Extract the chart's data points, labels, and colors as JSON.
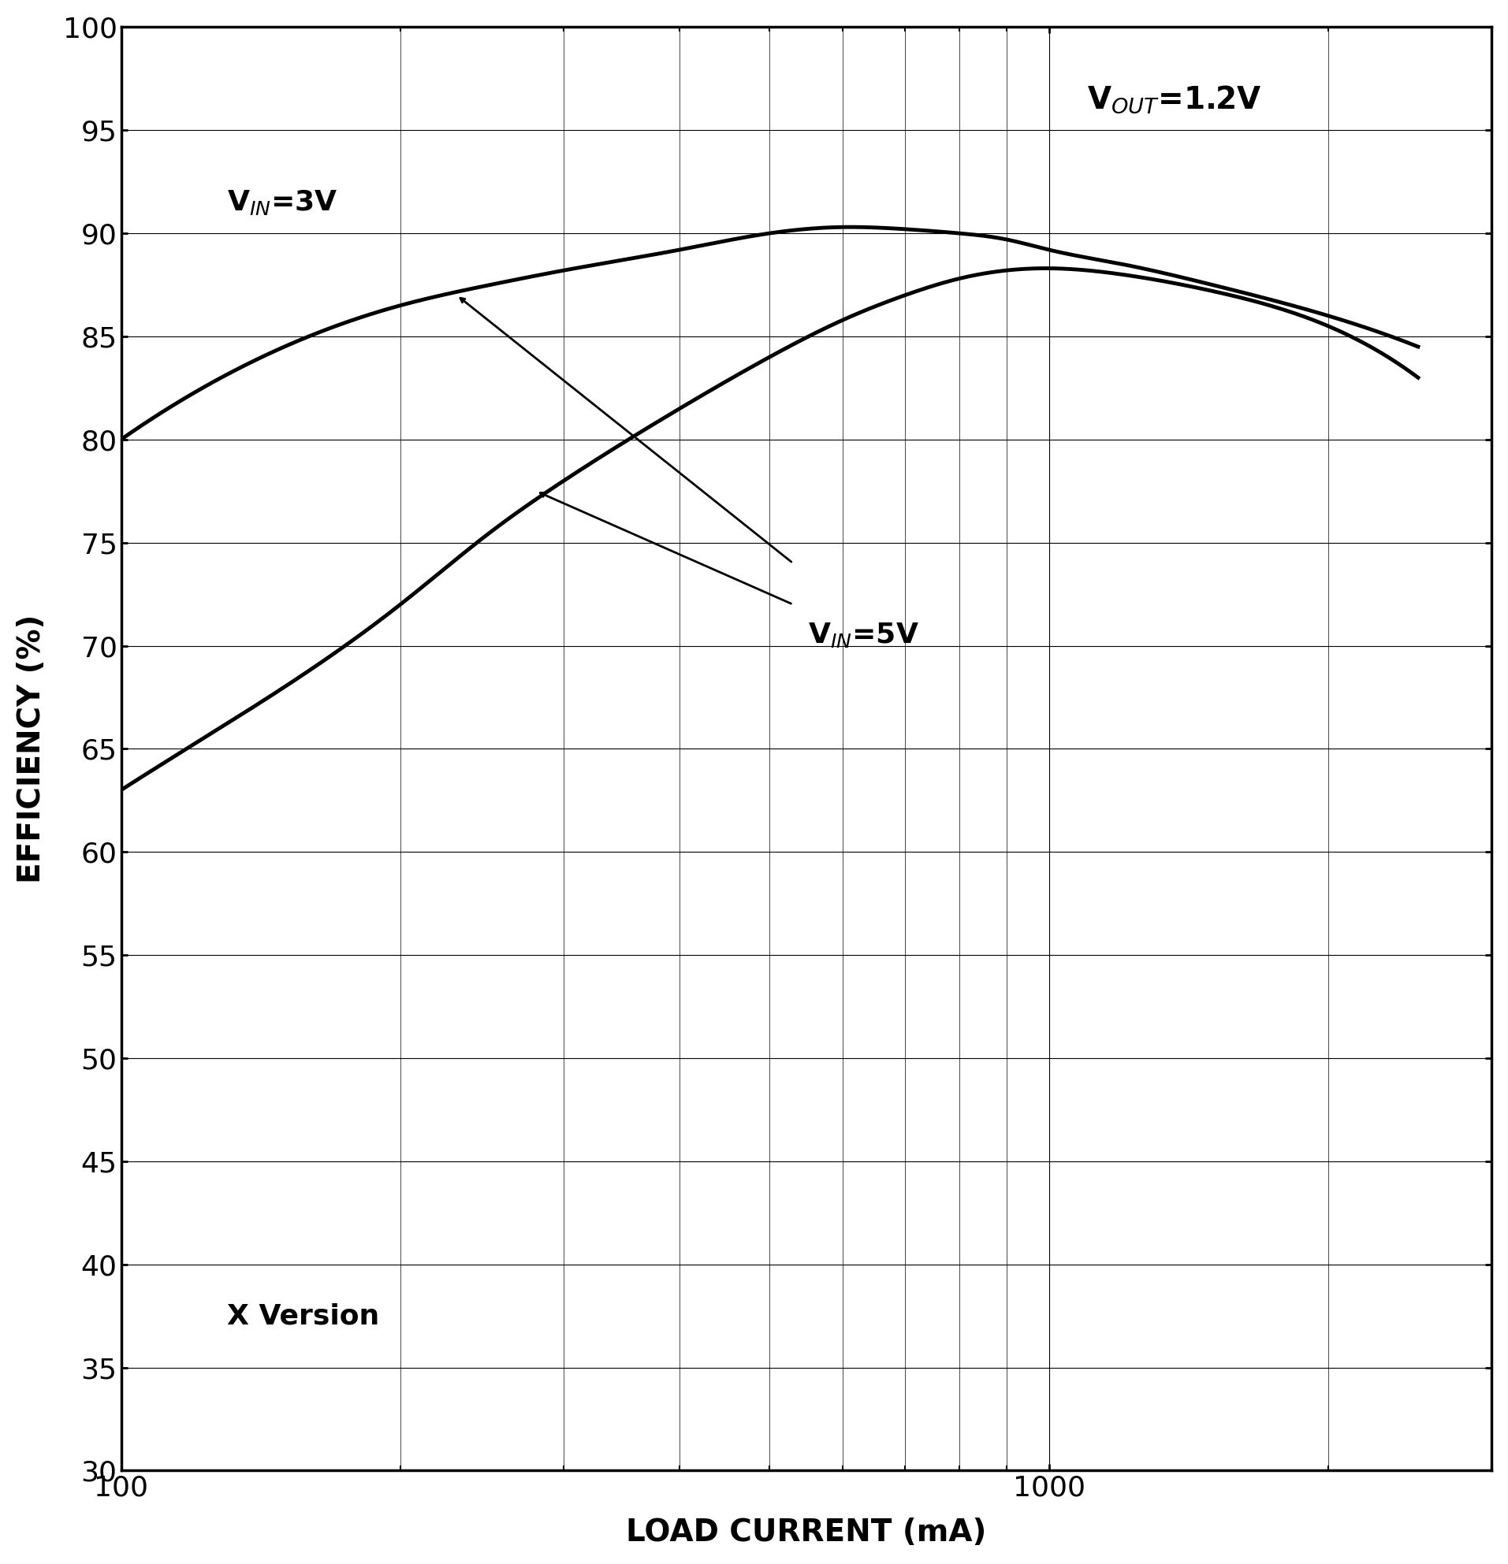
{
  "xlabel": "LOAD CURRENT (mA)",
  "ylabel": "EFFICIENCY (%)",
  "xlim_log": [
    100,
    3000
  ],
  "ylim": [
    30,
    100
  ],
  "yticks": [
    30,
    35,
    40,
    45,
    50,
    55,
    60,
    65,
    70,
    75,
    80,
    85,
    90,
    95,
    100
  ],
  "xticks": [
    100,
    1000
  ],
  "background_color": "#ffffff",
  "line_color": "#000000",
  "line_width": 3.5,
  "annotation_vout": "V$_{OUT}$=1.2V",
  "annotation_vin3": "V$_{IN}$=3V",
  "annotation_vin5": "V$_{IN}$=5V",
  "annotation_xver": "X Version",
  "curve_vin3_x": [
    100,
    150,
    200,
    250,
    300,
    400,
    500,
    600,
    700,
    800,
    900,
    1000,
    1200,
    1500,
    2000,
    2500
  ],
  "curve_vin3_y": [
    80.0,
    84.5,
    86.5,
    87.5,
    88.2,
    89.2,
    90.0,
    90.3,
    90.2,
    90.0,
    89.7,
    89.2,
    88.5,
    87.5,
    86.0,
    84.5
  ],
  "curve_vin5_x": [
    100,
    150,
    200,
    250,
    300,
    400,
    500,
    600,
    700,
    800,
    900,
    1000,
    1200,
    1500,
    2000,
    2500
  ],
  "curve_vin5_y": [
    63.0,
    68.0,
    72.0,
    75.5,
    78.0,
    81.5,
    84.0,
    85.8,
    87.0,
    87.8,
    88.2,
    88.3,
    88.0,
    87.2,
    85.5,
    83.0
  ],
  "xlabel_fontsize": 28,
  "ylabel_fontsize": 28,
  "tick_fontsize": 26,
  "annotation_fontsize": 26
}
